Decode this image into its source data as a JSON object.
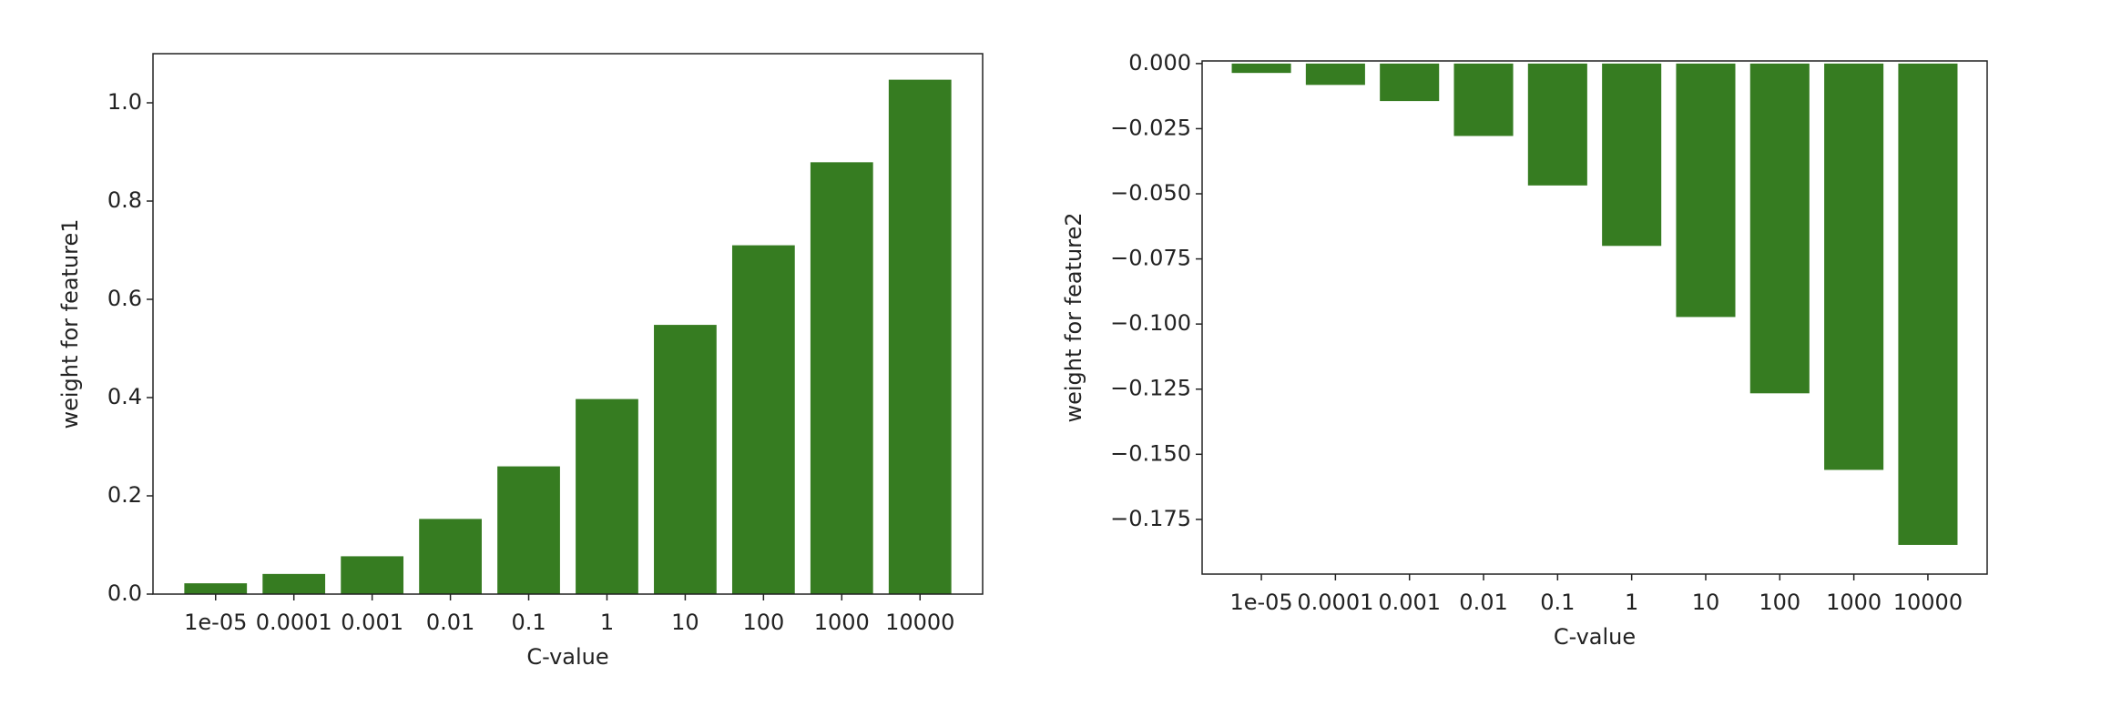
{
  "chart_data": [
    {
      "type": "bar",
      "xlabel": "C-value",
      "ylabel": "weight for feature1",
      "categories": [
        "1e-05",
        "0.0001",
        "0.001",
        "0.01",
        "0.1",
        "1",
        "10",
        "100",
        "1000",
        "10000"
      ],
      "values": [
        0.022,
        0.041,
        0.077,
        0.153,
        0.26,
        0.397,
        0.548,
        0.71,
        0.879,
        1.047
      ],
      "color": "#367c21",
      "ylim": [
        0,
        1.1
      ],
      "yticks": [
        {
          "value": 0,
          "label": "0.0"
        },
        0.2,
        0.4,
        0.6,
        0.8,
        {
          "value": 1,
          "label": "1.0"
        }
      ]
    },
    {
      "type": "bar",
      "xlabel": "C-value",
      "ylabel": "weight for feature2",
      "categories": [
        "1e-05",
        "0.0001",
        "0.001",
        "0.01",
        "0.1",
        "1",
        "10",
        "100",
        "1000",
        "10000"
      ],
      "values": [
        -0.0036,
        -0.0082,
        -0.0144,
        -0.0278,
        -0.0468,
        -0.07,
        -0.0973,
        -0.1266,
        -0.156,
        -0.1848
      ],
      "color": "#367c21",
      "ylim": [
        -0.196,
        0.001
      ],
      "yticks": [
        {
          "value": 0,
          "label": "0.000"
        },
        {
          "value": -0.025,
          "label": "−0.025"
        },
        {
          "value": -0.05,
          "label": "−0.050"
        },
        {
          "value": -0.075,
          "label": "−0.075"
        },
        {
          "value": -0.1,
          "label": "−0.100"
        },
        {
          "value": -0.125,
          "label": "−0.125"
        },
        {
          "value": -0.15,
          "label": "−0.150"
        },
        {
          "value": -0.175,
          "label": "−0.175"
        }
      ]
    }
  ]
}
